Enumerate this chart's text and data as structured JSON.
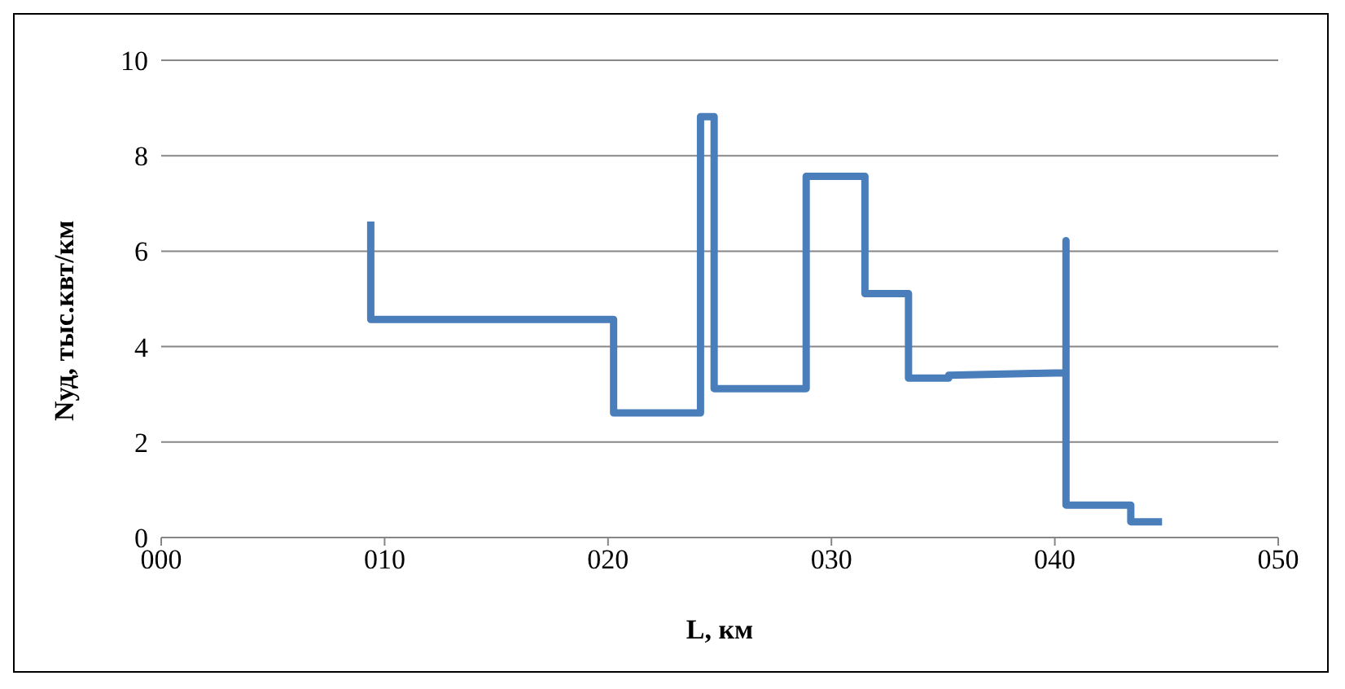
{
  "chart_data": {
    "type": "line",
    "xlabel": "L, км",
    "ylabel": "Nуд, тыс.квт/км",
    "x": [
      9.38,
      9.38,
      20.25,
      20.25,
      24.14,
      24.14,
      24.75,
      24.75,
      28.87,
      28.87,
      31.5,
      31.5,
      33.45,
      33.45,
      35.25,
      35.25,
      39.0,
      40.5,
      40.5,
      40.5,
      43.4,
      43.4,
      44.8
    ],
    "series": [
      {
        "color": "#4a7ebb",
        "values": [
          6.62,
          4.57,
          4.57,
          2.61,
          2.61,
          8.82,
          8.82,
          3.12,
          3.12,
          7.57,
          7.57,
          5.11,
          5.11,
          3.34,
          3.34,
          3.4,
          3.44,
          3.45,
          6.22,
          0.68,
          0.68,
          0.33,
          0.33
        ]
      }
    ],
    "xlim": [
      0,
      50
    ],
    "xticks": [
      {
        "value": 0,
        "label": "000"
      },
      {
        "value": 10,
        "label": "010"
      },
      {
        "value": 20,
        "label": "020"
      },
      {
        "value": 30,
        "label": "030"
      },
      {
        "value": 40,
        "label": "040"
      },
      {
        "value": 50,
        "label": "050"
      }
    ],
    "ylim": [
      0,
      10
    ],
    "yticks": [
      0,
      2,
      4,
      6,
      8,
      10
    ],
    "grid": "y",
    "marker": "none",
    "line_style": "solid"
  }
}
